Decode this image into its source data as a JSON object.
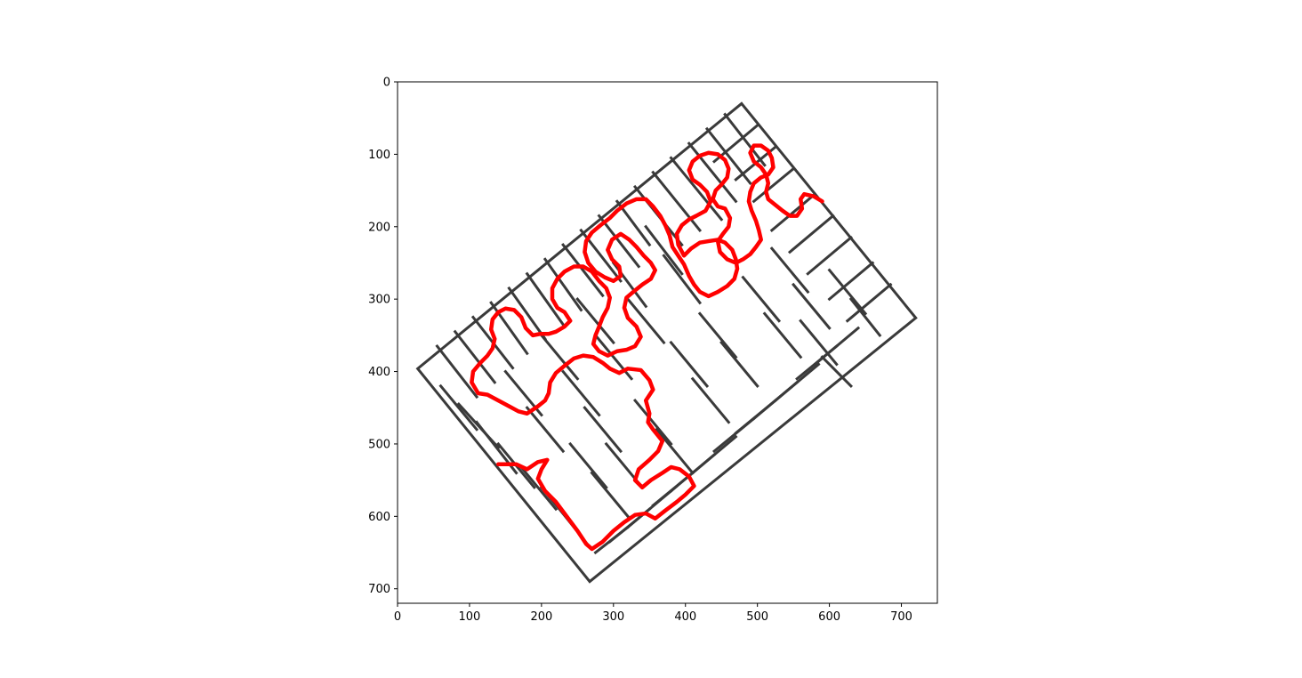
{
  "axes": {
    "xlim": [
      0,
      750
    ],
    "ylim": [
      720,
      0
    ],
    "y_inverted": true,
    "x_ticks": [
      {
        "value": 0,
        "label": "0"
      },
      {
        "value": 100,
        "label": "100"
      },
      {
        "value": 200,
        "label": "200"
      },
      {
        "value": 300,
        "label": "300"
      },
      {
        "value": 400,
        "label": "400"
      },
      {
        "value": 500,
        "label": "500"
      },
      {
        "value": 600,
        "label": "600"
      },
      {
        "value": 700,
        "label": "700"
      }
    ],
    "y_ticks": [
      {
        "value": 0,
        "label": "0"
      },
      {
        "value": 100,
        "label": "100"
      },
      {
        "value": 200,
        "label": "200"
      },
      {
        "value": 300,
        "label": "300"
      },
      {
        "value": 400,
        "label": "400"
      },
      {
        "value": 500,
        "label": "500"
      },
      {
        "value": 600,
        "label": "600"
      },
      {
        "value": 700,
        "label": "700"
      }
    ]
  },
  "maze": {
    "rotation_deg": 37,
    "corners": [
      [
        478,
        30
      ],
      [
        720,
        326
      ],
      [
        267,
        690
      ],
      [
        28,
        396
      ]
    ],
    "wall_color": "#3a3a3a",
    "background_color": "#ffffff",
    "walls": [
      [
        [
          455,
          45
        ],
        [
          510,
          115
        ]
      ],
      [
        [
          430,
          65
        ],
        [
          490,
          140
        ]
      ],
      [
        [
          405,
          85
        ],
        [
          470,
          165
        ]
      ],
      [
        [
          380,
          105
        ],
        [
          450,
          190
        ]
      ],
      [
        [
          355,
          125
        ],
        [
          420,
          205
        ]
      ],
      [
        [
          330,
          145
        ],
        [
          395,
          225
        ]
      ],
      [
        [
          305,
          165
        ],
        [
          350,
          225
        ]
      ],
      [
        [
          280,
          185
        ],
        [
          335,
          255
        ]
      ],
      [
        [
          255,
          205
        ],
        [
          310,
          275
        ]
      ],
      [
        [
          230,
          225
        ],
        [
          285,
          295
        ]
      ],
      [
        [
          205,
          245
        ],
        [
          255,
          315
        ]
      ],
      [
        [
          180,
          265
        ],
        [
          230,
          335
        ]
      ],
      [
        [
          155,
          285
        ],
        [
          205,
          355
        ]
      ],
      [
        [
          130,
          305
        ],
        [
          180,
          375
        ]
      ],
      [
        [
          105,
          325
        ],
        [
          160,
          395
        ]
      ],
      [
        [
          80,
          345
        ],
        [
          135,
          415
        ]
      ],
      [
        [
          55,
          365
        ],
        [
          110,
          435
        ]
      ],
      [
        [
          60,
          420
        ],
        [
          110,
          480
        ]
      ],
      [
        [
          85,
          445
        ],
        [
          140,
          505
        ]
      ],
      [
        [
          110,
          470
        ],
        [
          165,
          540
        ]
      ],
      [
        [
          140,
          500
        ],
        [
          190,
          560
        ]
      ],
      [
        [
          170,
          530
        ],
        [
          220,
          590
        ]
      ],
      [
        [
          200,
          560
        ],
        [
          250,
          620
        ]
      ],
      [
        [
          225,
          590
        ],
        [
          265,
          640
        ]
      ],
      [
        [
          500,
          60
        ],
        [
          440,
          110
        ]
      ],
      [
        [
          525,
          90
        ],
        [
          470,
          135
        ]
      ],
      [
        [
          550,
          120
        ],
        [
          495,
          165
        ]
      ],
      [
        [
          580,
          155
        ],
        [
          520,
          205
        ]
      ],
      [
        [
          605,
          185
        ],
        [
          545,
          235
        ]
      ],
      [
        [
          630,
          215
        ],
        [
          570,
          265
        ]
      ],
      [
        [
          660,
          250
        ],
        [
          600,
          300
        ]
      ],
      [
        [
          685,
          280
        ],
        [
          625,
          330
        ]
      ],
      [
        [
          640,
          340
        ],
        [
          580,
          390
        ]
      ],
      [
        [
          610,
          365
        ],
        [
          555,
          410
        ]
      ],
      [
        [
          585,
          390
        ],
        [
          525,
          440
        ]
      ],
      [
        [
          555,
          415
        ],
        [
          495,
          465
        ]
      ],
      [
        [
          525,
          440
        ],
        [
          470,
          485
        ]
      ],
      [
        [
          495,
          465
        ],
        [
          440,
          510
        ]
      ],
      [
        [
          470,
          490
        ],
        [
          410,
          540
        ]
      ],
      [
        [
          440,
          515
        ],
        [
          380,
          565
        ]
      ],
      [
        [
          410,
          540
        ],
        [
          355,
          585
        ]
      ],
      [
        [
          380,
          565
        ],
        [
          320,
          615
        ]
      ],
      [
        [
          350,
          590
        ],
        [
          295,
          635
        ]
      ],
      [
        [
          320,
          615
        ],
        [
          275,
          650
        ]
      ],
      [
        [
          345,
          200
        ],
        [
          395,
          265
        ]
      ],
      [
        [
          370,
          240
        ],
        [
          420,
          305
        ]
      ],
      [
        [
          300,
          250
        ],
        [
          345,
          310
        ]
      ],
      [
        [
          320,
          300
        ],
        [
          370,
          360
        ]
      ],
      [
        [
          250,
          300
        ],
        [
          300,
          360
        ]
      ],
      [
        [
          275,
          350
        ],
        [
          325,
          410
        ]
      ],
      [
        [
          200,
          350
        ],
        [
          250,
          410
        ]
      ],
      [
        [
          230,
          400
        ],
        [
          280,
          460
        ]
      ],
      [
        [
          150,
          400
        ],
        [
          200,
          460
        ]
      ],
      [
        [
          180,
          450
        ],
        [
          230,
          510
        ]
      ],
      [
        [
          260,
          450
        ],
        [
          310,
          510
        ]
      ],
      [
        [
          290,
          500
        ],
        [
          340,
          560
        ]
      ],
      [
        [
          420,
          320
        ],
        [
          470,
          380
        ]
      ],
      [
        [
          450,
          360
        ],
        [
          500,
          420
        ]
      ],
      [
        [
          380,
          360
        ],
        [
          430,
          420
        ]
      ],
      [
        [
          410,
          410
        ],
        [
          460,
          470
        ]
      ],
      [
        [
          520,
          230
        ],
        [
          570,
          290
        ]
      ],
      [
        [
          550,
          280
        ],
        [
          600,
          340
        ]
      ],
      [
        [
          480,
          270
        ],
        [
          530,
          330
        ]
      ],
      [
        [
          510,
          320
        ],
        [
          560,
          380
        ]
      ],
      [
        [
          600,
          260
        ],
        [
          650,
          320
        ]
      ],
      [
        [
          630,
          300
        ],
        [
          670,
          350
        ]
      ],
      [
        [
          560,
          330
        ],
        [
          610,
          390
        ]
      ],
      [
        [
          590,
          380
        ],
        [
          630,
          420
        ]
      ],
      [
        [
          330,
          440
        ],
        [
          380,
          500
        ]
      ],
      [
        [
          360,
          480
        ],
        [
          410,
          540
        ]
      ],
      [
        [
          240,
          500
        ],
        [
          290,
          560
        ]
      ],
      [
        [
          270,
          540
        ],
        [
          320,
          600
        ]
      ]
    ]
  },
  "solution_path": {
    "color": "#ff0000",
    "points": [
      [
        140,
        528
      ],
      [
        165,
        528
      ],
      [
        180,
        535
      ],
      [
        195,
        525
      ],
      [
        208,
        522
      ],
      [
        200,
        535
      ],
      [
        195,
        548
      ],
      [
        205,
        565
      ],
      [
        220,
        580
      ],
      [
        235,
        600
      ],
      [
        250,
        620
      ],
      [
        262,
        638
      ],
      [
        270,
        645
      ],
      [
        285,
        635
      ],
      [
        300,
        620
      ],
      [
        315,
        608
      ],
      [
        330,
        598
      ],
      [
        345,
        596
      ],
      [
        358,
        603
      ],
      [
        372,
        592
      ],
      [
        388,
        580
      ],
      [
        400,
        570
      ],
      [
        412,
        558
      ],
      [
        405,
        545
      ],
      [
        392,
        535
      ],
      [
        380,
        532
      ],
      [
        368,
        540
      ],
      [
        352,
        550
      ],
      [
        340,
        560
      ],
      [
        330,
        550
      ],
      [
        335,
        535
      ],
      [
        350,
        522
      ],
      [
        362,
        510
      ],
      [
        368,
        496
      ],
      [
        355,
        480
      ],
      [
        348,
        470
      ],
      [
        350,
        458
      ],
      [
        345,
        440
      ],
      [
        355,
        425
      ],
      [
        350,
        412
      ],
      [
        338,
        398
      ],
      [
        320,
        396
      ],
      [
        308,
        402
      ],
      [
        295,
        396
      ],
      [
        285,
        388
      ],
      [
        272,
        380
      ],
      [
        258,
        378
      ],
      [
        245,
        382
      ],
      [
        232,
        392
      ],
      [
        220,
        402
      ],
      [
        212,
        415
      ],
      [
        210,
        430
      ],
      [
        205,
        440
      ],
      [
        195,
        448
      ],
      [
        180,
        458
      ],
      [
        168,
        455
      ],
      [
        155,
        448
      ],
      [
        140,
        440
      ],
      [
        125,
        432
      ],
      [
        112,
        430
      ],
      [
        103,
        415
      ],
      [
        105,
        400
      ],
      [
        115,
        388
      ],
      [
        125,
        378
      ],
      [
        132,
        368
      ],
      [
        135,
        355
      ],
      [
        130,
        342
      ],
      [
        132,
        328
      ],
      [
        140,
        318
      ],
      [
        150,
        313
      ],
      [
        162,
        315
      ],
      [
        172,
        325
      ],
      [
        178,
        340
      ],
      [
        188,
        350
      ],
      [
        198,
        348
      ],
      [
        210,
        348
      ],
      [
        220,
        345
      ],
      [
        232,
        338
      ],
      [
        240,
        330
      ],
      [
        232,
        318
      ],
      [
        222,
        312
      ],
      [
        215,
        300
      ],
      [
        215,
        285
      ],
      [
        222,
        272
      ],
      [
        232,
        262
      ],
      [
        245,
        255
      ],
      [
        258,
        255
      ],
      [
        270,
        262
      ],
      [
        280,
        275
      ],
      [
        290,
        285
      ],
      [
        295,
        298
      ],
      [
        292,
        312
      ],
      [
        285,
        325
      ],
      [
        280,
        338
      ],
      [
        275,
        350
      ],
      [
        272,
        362
      ],
      [
        280,
        372
      ],
      [
        292,
        378
      ],
      [
        305,
        372
      ],
      [
        318,
        370
      ],
      [
        330,
        365
      ],
      [
        338,
        352
      ],
      [
        332,
        338
      ],
      [
        320,
        326
      ],
      [
        315,
        312
      ],
      [
        318,
        298
      ],
      [
        330,
        288
      ],
      [
        340,
        280
      ],
      [
        352,
        272
      ],
      [
        358,
        260
      ],
      [
        352,
        250
      ],
      [
        342,
        240
      ],
      [
        332,
        228
      ],
      [
        322,
        218
      ],
      [
        310,
        210
      ],
      [
        298,
        218
      ],
      [
        292,
        232
      ],
      [
        298,
        245
      ],
      [
        308,
        255
      ],
      [
        310,
        268
      ],
      [
        300,
        275
      ],
      [
        288,
        270
      ],
      [
        275,
        262
      ],
      [
        265,
        250
      ],
      [
        260,
        235
      ],
      [
        262,
        220
      ],
      [
        270,
        208
      ],
      [
        282,
        198
      ],
      [
        295,
        188
      ],
      [
        305,
        178
      ],
      [
        318,
        168
      ],
      [
        332,
        162
      ],
      [
        345,
        162
      ],
      [
        355,
        172
      ],
      [
        365,
        185
      ],
      [
        372,
        198
      ],
      [
        378,
        212
      ],
      [
        382,
        228
      ],
      [
        390,
        240
      ],
      [
        398,
        252
      ],
      [
        405,
        268
      ],
      [
        412,
        280
      ],
      [
        420,
        290
      ],
      [
        432,
        296
      ],
      [
        445,
        290
      ],
      [
        458,
        282
      ],
      [
        468,
        272
      ],
      [
        472,
        258
      ],
      [
        470,
        245
      ],
      [
        465,
        232
      ],
      [
        455,
        222
      ],
      [
        445,
        218
      ],
      [
        432,
        220
      ],
      [
        420,
        222
      ],
      [
        408,
        230
      ],
      [
        398,
        240
      ],
      [
        390,
        225
      ],
      [
        388,
        210
      ],
      [
        395,
        198
      ],
      [
        405,
        190
      ],
      [
        415,
        185
      ],
      [
        428,
        178
      ],
      [
        435,
        165
      ],
      [
        430,
        152
      ],
      [
        420,
        142
      ],
      [
        410,
        135
      ],
      [
        405,
        122
      ],
      [
        410,
        110
      ],
      [
        420,
        102
      ],
      [
        432,
        98
      ],
      [
        445,
        100
      ],
      [
        455,
        108
      ],
      [
        460,
        120
      ],
      [
        458,
        132
      ],
      [
        450,
        142
      ],
      [
        442,
        150
      ],
      [
        438,
        162
      ],
      [
        445,
        172
      ],
      [
        455,
        175
      ],
      [
        462,
        188
      ],
      [
        460,
        200
      ],
      [
        452,
        210
      ],
      [
        445,
        220
      ],
      [
        448,
        235
      ],
      [
        458,
        245
      ],
      [
        470,
        250
      ],
      [
        480,
        245
      ],
      [
        490,
        238
      ],
      [
        498,
        228
      ],
      [
        505,
        218
      ],
      [
        502,
        205
      ],
      [
        498,
        192
      ],
      [
        492,
        178
      ],
      [
        488,
        165
      ],
      [
        490,
        152
      ],
      [
        495,
        140
      ],
      [
        505,
        132
      ],
      [
        515,
        128
      ],
      [
        522,
        118
      ],
      [
        520,
        105
      ],
      [
        515,
        95
      ],
      [
        505,
        88
      ],
      [
        495,
        88
      ],
      [
        490,
        98
      ],
      [
        495,
        110
      ],
      [
        505,
        118
      ],
      [
        512,
        128
      ],
      [
        515,
        140
      ],
      [
        512,
        152
      ],
      [
        515,
        162
      ],
      [
        525,
        170
      ],
      [
        535,
        178
      ],
      [
        545,
        185
      ],
      [
        555,
        185
      ],
      [
        562,
        175
      ],
      [
        560,
        162
      ],
      [
        565,
        155
      ],
      [
        578,
        158
      ],
      [
        590,
        165
      ]
    ]
  }
}
